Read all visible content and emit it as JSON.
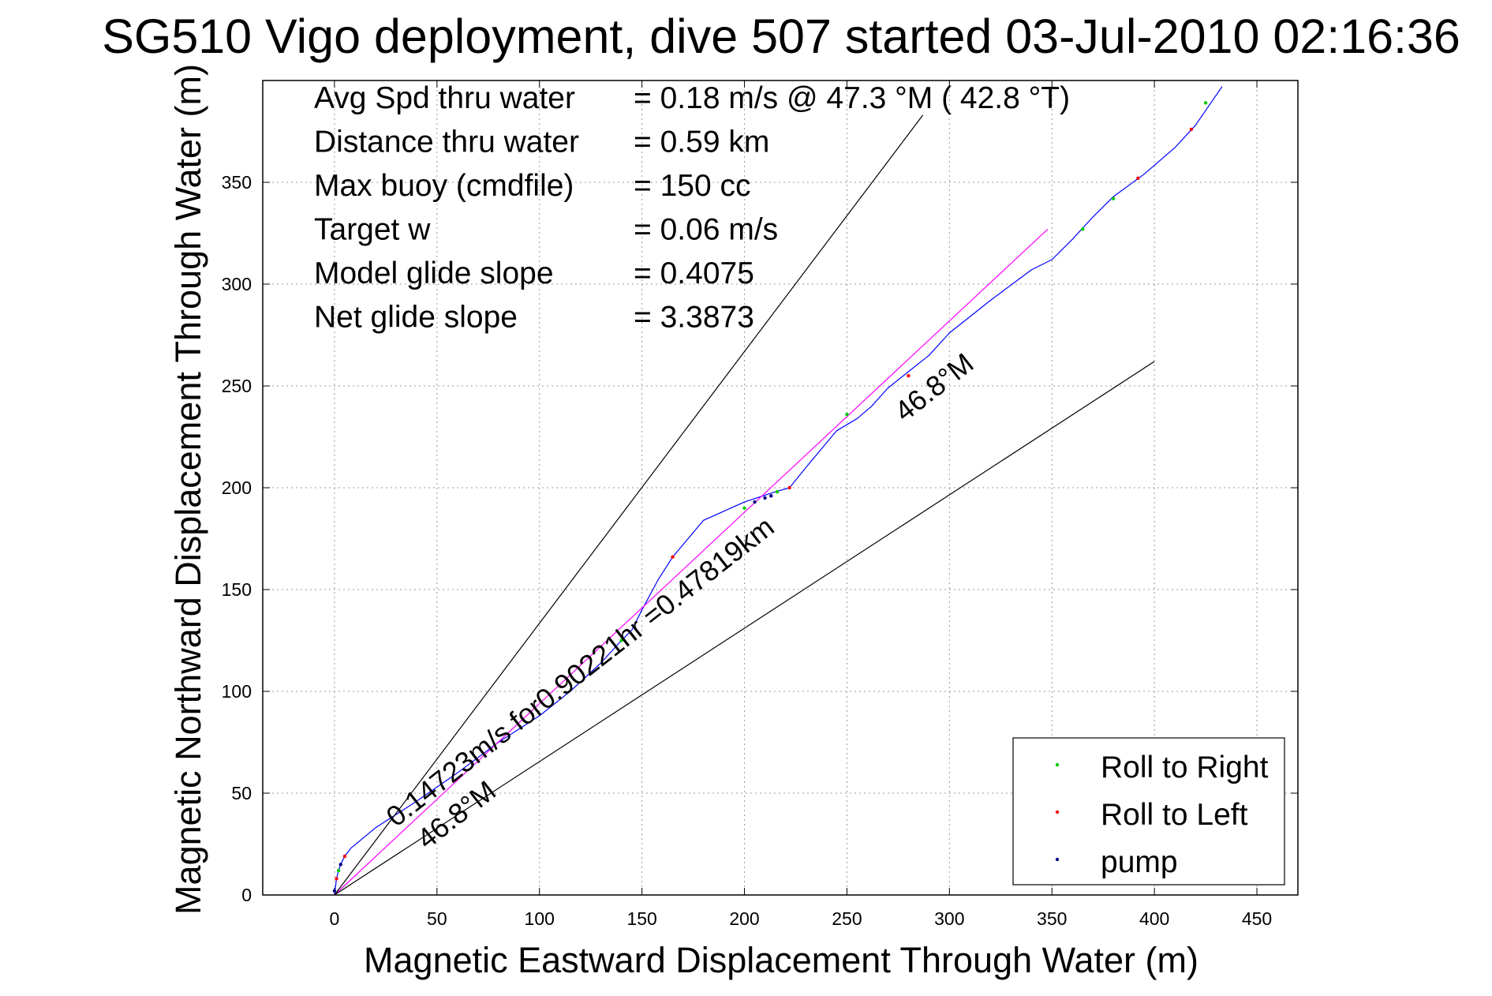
{
  "chart_data": {
    "type": "line",
    "title": "SG510 Vigo deployment, dive 507 started 03-Jul-2010 02:16:36",
    "xlabel": "Magnetic Eastward Displacement Through Water (m)",
    "ylabel": "Magnetic Northward Displacement Through Water (m)",
    "xlim": [
      -35,
      470
    ],
    "ylim": [
      0,
      400
    ],
    "xticks": [
      0,
      50,
      100,
      150,
      200,
      250,
      300,
      350,
      400,
      450
    ],
    "yticks": [
      0,
      50,
      100,
      150,
      200,
      250,
      300,
      350
    ],
    "xtick_labels": [
      "0",
      "50",
      "100",
      "150",
      "200",
      "250",
      "300",
      "350",
      "400",
      "450"
    ],
    "ytick_labels": [
      "0",
      "50",
      "100",
      "150",
      "200",
      "250",
      "300",
      "350"
    ],
    "grid": true,
    "stats": [
      {
        "label": "Avg Spd thru water",
        "value": "=  0.18 m/s @  47.3 °M ( 42.8 °T)"
      },
      {
        "label": "Distance thru water",
        "value": "=  0.59 km"
      },
      {
        "label": "Max buoy (cmdfile)",
        "value": "= 150 cc"
      },
      {
        "label": "Target w",
        "value": "= 0.06 m/s"
      },
      {
        "label": "Model glide slope",
        "value": "= 0.4075"
      },
      {
        "label": "Net glide slope",
        "value": "= 3.3873"
      }
    ],
    "annotations": [
      {
        "text": "0.14723m/s for0.90221hr =0.47819km",
        "x": 30,
        "y": 33,
        "angle": 38
      },
      {
        "text": "46.8°M",
        "x": 45,
        "y": 22,
        "angle": 38
      },
      {
        "text": "46.8°M",
        "x": 278,
        "y": 232,
        "angle": 38
      }
    ],
    "series": [
      {
        "name": "track",
        "color": "#0000ff",
        "x": [
          0,
          1,
          2,
          3,
          5,
          8,
          20,
          40,
          60,
          80,
          100,
          115,
          130,
          140,
          145,
          150,
          158,
          165,
          180,
          200,
          215,
          222,
          230,
          245,
          255,
          262,
          270,
          280,
          290,
          300,
          320,
          340,
          350,
          360,
          370,
          380,
          395,
          410,
          420,
          433
        ],
        "y": [
          0,
          8,
          12,
          15,
          19,
          23,
          33,
          46,
          60,
          75,
          88,
          100,
          114,
          125,
          130,
          140,
          155,
          166,
          184,
          193,
          198,
          200,
          210,
          228,
          234,
          240,
          249,
          257,
          265,
          276,
          292,
          307,
          312,
          322,
          333,
          343,
          354,
          367,
          378,
          397
        ]
      },
      {
        "name": "target",
        "color": "#ff00ff",
        "x": [
          0,
          348
        ],
        "y": [
          0,
          327
        ]
      },
      {
        "name": "bound-upper",
        "color": "#000000",
        "x": [
          0,
          287
        ],
        "y": [
          0,
          383
        ]
      },
      {
        "name": "bound-lower",
        "color": "#000000",
        "x": [
          0,
          400
        ],
        "y": [
          0,
          262
        ]
      },
      {
        "name": "Roll to Right",
        "color": "#00cc00",
        "marker": "point",
        "x": [
          2,
          140,
          200,
          216,
          250,
          365,
          380,
          425
        ],
        "y": [
          12,
          125,
          190,
          198,
          236,
          327,
          342,
          389
        ]
      },
      {
        "name": "Roll to Left",
        "color": "#ff0000",
        "marker": "point",
        "x": [
          1,
          5,
          165,
          222,
          280,
          392,
          418
        ],
        "y": [
          8,
          19,
          166,
          200,
          255,
          352,
          376
        ]
      },
      {
        "name": "pump",
        "color": "#000080",
        "marker": "point",
        "x": [
          0,
          3,
          205,
          210,
          213
        ],
        "y": [
          2,
          15,
          193,
          195,
          196
        ]
      }
    ],
    "legend": {
      "placement": "bottom-right",
      "entries": [
        {
          "label": "Roll to Right",
          "color": "#00cc00"
        },
        {
          "label": "Roll to Left",
          "color": "#ff0000"
        },
        {
          "label": "pump",
          "color": "#000080"
        }
      ]
    }
  }
}
